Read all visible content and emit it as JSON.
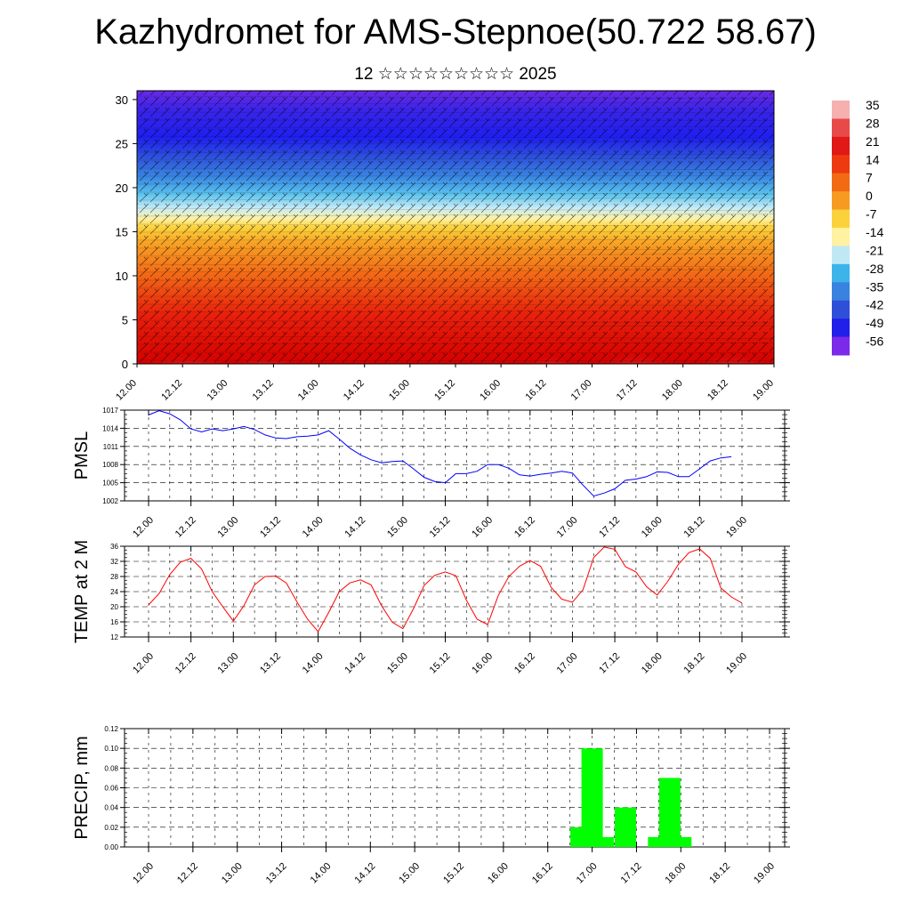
{
  "title": "Kazhydromet for AMS-Stepnoe(50.722 58.67)",
  "subtitle": "12 ☆☆☆☆☆☆☆☆☆ 2025",
  "chart_data": [
    {
      "type": "heatmap",
      "name": "upper-air-cross-section",
      "x_tick_labels": [
        "12.00",
        "12.12",
        "13.00",
        "13.12",
        "14.00",
        "14.12",
        "15.00",
        "15.12",
        "16.00",
        "16.12",
        "17.00",
        "17.12",
        "18.00",
        "18.12",
        "19.00"
      ],
      "ylim": [
        0,
        31
      ],
      "y_ticks": [
        0,
        5,
        10,
        15,
        20,
        25,
        30
      ],
      "colorbar": {
        "labels": [
          "35",
          "28",
          "21",
          "14",
          "7",
          "0",
          "-7",
          "-14",
          "-21",
          "-28",
          "-35",
          "-42",
          "-49",
          "-56"
        ],
        "colors": [
          "#f6b0b0",
          "#e84a4a",
          "#e01818",
          "#ee3a10",
          "#f26a14",
          "#f79a22",
          "#fcd23c",
          "#fff2a0",
          "#bfe8f4",
          "#3cb4ea",
          "#3a82e0",
          "#2f4fd8",
          "#2020e8",
          "#7a2ae8"
        ]
      },
      "overlay": "wind barbs"
    },
    {
      "type": "line",
      "ylabel": "PMSL",
      "ylim": [
        1002,
        1017
      ],
      "y_ticks": [
        1002,
        1005,
        1008,
        1011,
        1014,
        1017
      ],
      "x_tick_labels": [
        "12.00",
        "12.12",
        "13.00",
        "13.12",
        "14.00",
        "14.12",
        "15.00",
        "15.12",
        "16.00",
        "16.12",
        "17.00",
        "17.12",
        "18.00",
        "18.12",
        "19.00"
      ],
      "x_step_hours": 3,
      "color": "#0000ff",
      "values": [
        1016.2,
        1016.9,
        1016.4,
        1015.4,
        1013.9,
        1013.4,
        1013.9,
        1013.6,
        1013.9,
        1014.3,
        1013.8,
        1012.9,
        1012.4,
        1012.3,
        1012.6,
        1012.7,
        1012.9,
        1013.6,
        1012.2,
        1010.7,
        1009.6,
        1008.8,
        1008.3,
        1008.5,
        1008.6,
        1007.3,
        1005.9,
        1005.2,
        1005.0,
        1006.5,
        1006.5,
        1006.9,
        1008.0,
        1008.0,
        1007.4,
        1006.3,
        1006.1,
        1006.4,
        1006.6,
        1006.9,
        1006.6,
        1004.6,
        1002.8,
        1003.3,
        1004.0,
        1005.4,
        1005.6,
        1006.0,
        1006.8,
        1006.7,
        1006.0,
        1006.0,
        1007.3,
        1008.6,
        1009.1,
        1009.3
      ]
    },
    {
      "type": "line",
      "ylabel": "TEMP at 2 M",
      "ylim": [
        12,
        36
      ],
      "y_ticks": [
        12,
        16,
        20,
        24,
        28,
        32,
        36
      ],
      "x_tick_labels": [
        "12.00",
        "12.12",
        "13.00",
        "13.12",
        "14.00",
        "14.12",
        "15.00",
        "15.12",
        "16.00",
        "16.12",
        "17.00",
        "17.12",
        "18.00",
        "18.12",
        "19.00"
      ],
      "x_step_hours": 3,
      "color": "#ff0000",
      "values": [
        20.5,
        23.5,
        28.5,
        31.8,
        32.8,
        30.0,
        24.0,
        20.0,
        16.2,
        20.3,
        25.8,
        28.0,
        28.1,
        26.3,
        21.3,
        16.7,
        13.4,
        18.5,
        24.0,
        26.3,
        27.1,
        25.8,
        20.2,
        15.9,
        14.2,
        19.5,
        25.6,
        28.3,
        29.2,
        28.2,
        21.7,
        16.7,
        15.3,
        23.0,
        28.0,
        30.7,
        32.2,
        30.7,
        25.1,
        22.0,
        21.2,
        24.5,
        33.0,
        35.8,
        35.2,
        30.6,
        29.2,
        25.3,
        23.1,
        26.7,
        31.2,
        34.3,
        35.3,
        32.8,
        25.0,
        22.6,
        21.0
      ]
    },
    {
      "type": "bar",
      "ylabel": "PRECIP, mm",
      "ylim": [
        0,
        0.12
      ],
      "y_ticks": [
        "0.00",
        "0.02",
        "0.04",
        "0.06",
        "0.08",
        "0.10",
        "0.12"
      ],
      "x_tick_labels": [
        "12.00",
        "12.12",
        "13.00",
        "13.12",
        "14.00",
        "14.12",
        "15.00",
        "15.12",
        "16.00",
        "16.12",
        "17.00",
        "17.12",
        "18.00",
        "18.12",
        "19.00"
      ],
      "color": "#00ff00",
      "bars": [
        {
          "x_hours": 117,
          "value": 0.02
        },
        {
          "x_hours": 120,
          "value": 0.1
        },
        {
          "x_hours": 123,
          "value": 0.01
        },
        {
          "x_hours": 129,
          "value": 0.04
        },
        {
          "x_hours": 138,
          "value": 0.01
        },
        {
          "x_hours": 141,
          "value": 0.07
        },
        {
          "x_hours": 144,
          "value": 0.01
        }
      ]
    }
  ]
}
